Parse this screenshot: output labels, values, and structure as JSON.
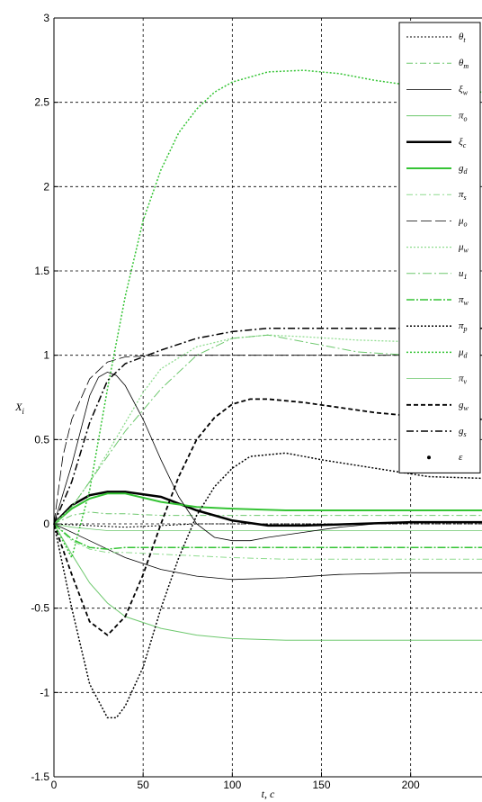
{
  "chart_data": {
    "type": "line",
    "title": "",
    "xlabel": "t, c",
    "ylabel": "X_i",
    "xlim": [
      0,
      240
    ],
    "ylim": [
      -1.5,
      3
    ],
    "xticks": [
      0,
      50,
      100,
      150,
      200
    ],
    "xtick_labels": [
      "0",
      "50",
      "100",
      "150",
      "200"
    ],
    "yticks": [
      -1.5,
      -1,
      -0.5,
      0,
      0.5,
      1,
      1.5,
      2,
      2.5,
      3
    ],
    "ytick_labels": [
      "-1.5",
      "-1",
      "-0.5",
      "0",
      "0.5",
      "1",
      "1.5",
      "2",
      "2.5",
      "3"
    ],
    "grid": true,
    "legend_position": "top-right",
    "series": [
      {
        "name": "θt",
        "label_main": "θ",
        "label_sub": "t",
        "color": "#000000",
        "dash": "2,2",
        "width": 1,
        "x": [
          0,
          20,
          40,
          60,
          80,
          100,
          120,
          140,
          160,
          180,
          200,
          220,
          240
        ],
        "y": [
          0,
          -0.01,
          -0.02,
          -0.01,
          0,
          0,
          0,
          0,
          0,
          0,
          0,
          0,
          0
        ]
      },
      {
        "name": "θm",
        "label_main": "θ",
        "label_sub": "m",
        "color": "#6ec86e",
        "dash": "7,3,2,3",
        "width": 1,
        "x": [
          0,
          10,
          20,
          30,
          40,
          60,
          80,
          100,
          120,
          150,
          180,
          210,
          240
        ],
        "y": [
          0,
          0.05,
          0.07,
          0.06,
          0.06,
          0.05,
          0.05,
          0.05,
          0.05,
          0.05,
          0.05,
          0.05,
          0.05
        ]
      },
      {
        "name": "ξw",
        "label_main": "ξ",
        "label_sub": "w",
        "color": "#000000",
        "dash": "",
        "width": 0.8,
        "x": [
          0,
          20,
          40,
          60,
          80,
          100,
          130,
          160,
          200,
          240
        ],
        "y": [
          0,
          -0.1,
          -0.2,
          -0.27,
          -0.31,
          -0.33,
          -0.32,
          -0.3,
          -0.29,
          -0.29
        ]
      },
      {
        "name": "πo",
        "label_main": "π",
        "label_sub": "o",
        "color": "#6ec86e",
        "dash": "",
        "width": 1,
        "x": [
          0,
          10,
          20,
          30,
          40,
          60,
          80,
          100,
          130,
          160,
          200,
          240
        ],
        "y": [
          0,
          -0.18,
          -0.35,
          -0.47,
          -0.55,
          -0.62,
          -0.66,
          -0.68,
          -0.69,
          -0.69,
          -0.69,
          -0.69
        ]
      },
      {
        "name": "ξc",
        "label_main": "ξ",
        "label_sub": "c",
        "color": "#000000",
        "dash": "",
        "width": 2.5,
        "x": [
          0,
          10,
          20,
          30,
          40,
          60,
          80,
          100,
          120,
          140,
          170,
          200,
          240
        ],
        "y": [
          0,
          0.11,
          0.17,
          0.19,
          0.19,
          0.16,
          0.08,
          0.02,
          -0.01,
          -0.01,
          0,
          0.01,
          0.01
        ]
      },
      {
        "name": "gd",
        "label_main": "g",
        "label_sub": "d",
        "color": "#35c435",
        "dash": "",
        "width": 2,
        "x": [
          0,
          10,
          20,
          30,
          40,
          60,
          80,
          100,
          130,
          160,
          200,
          240
        ],
        "y": [
          0,
          0.09,
          0.15,
          0.18,
          0.18,
          0.13,
          0.1,
          0.09,
          0.08,
          0.08,
          0.08,
          0.08
        ]
      },
      {
        "name": "πs",
        "label_main": "π",
        "label_sub": "s",
        "color": "#8fdc8f",
        "dash": "7,3,2,3",
        "width": 1,
        "x": [
          0,
          10,
          20,
          30,
          40,
          60,
          80,
          100,
          130,
          160,
          200,
          240
        ],
        "y": [
          0,
          -0.1,
          -0.15,
          -0.17,
          -0.17,
          -0.18,
          -0.19,
          -0.2,
          -0.21,
          -0.21,
          -0.21,
          -0.21
        ]
      },
      {
        "name": "μo",
        "label_main": "μ",
        "label_sub": "o",
        "color": "#000000",
        "dash": "12,4",
        "width": 0.8,
        "x": [
          0,
          5,
          10,
          20,
          30,
          40,
          60,
          80,
          100,
          130,
          160,
          200,
          240
        ],
        "y": [
          0,
          0.4,
          0.62,
          0.86,
          0.96,
          0.99,
          1.0,
          1.0,
          1.0,
          1.0,
          1.0,
          1.0,
          1.0
        ]
      },
      {
        "name": "μw",
        "label_main": "μ",
        "label_sub": "w",
        "color": "#8fdc8f",
        "dash": "2,2",
        "width": 1.3,
        "x": [
          0,
          10,
          20,
          30,
          40,
          50,
          60,
          80,
          100,
          120,
          140,
          170,
          200,
          240
        ],
        "y": [
          0,
          0.1,
          0.25,
          0.42,
          0.6,
          0.78,
          0.92,
          1.05,
          1.1,
          1.12,
          1.11,
          1.09,
          1.08,
          1.08
        ]
      },
      {
        "name": "u1",
        "label_main": "u",
        "label_sub": "1",
        "color": "#6ec86e",
        "dash": "10,3,2,3",
        "width": 1,
        "x": [
          0,
          10,
          20,
          30,
          40,
          60,
          80,
          100,
          120,
          140,
          170,
          200,
          240
        ],
        "y": [
          0,
          0.1,
          0.25,
          0.4,
          0.55,
          0.8,
          1.0,
          1.1,
          1.12,
          1.08,
          1.02,
          1.0,
          0.99
        ]
      },
      {
        "name": "πw",
        "label_main": "π",
        "label_sub": "w",
        "color": "#35c435",
        "dash": "9,2,2,2",
        "width": 1.5,
        "x": [
          0,
          10,
          20,
          30,
          40,
          60,
          80,
          100,
          130,
          160,
          200,
          240
        ],
        "y": [
          0,
          -0.09,
          -0.14,
          -0.15,
          -0.14,
          -0.14,
          -0.14,
          -0.14,
          -0.14,
          -0.14,
          -0.14,
          -0.14
        ]
      },
      {
        "name": "πp",
        "label_main": "π",
        "label_sub": "p",
        "color": "#000000",
        "dash": "2,2",
        "width": 1.5,
        "x": [
          0,
          10,
          20,
          30,
          35,
          40,
          50,
          60,
          70,
          80,
          90,
          100,
          110,
          130,
          150,
          180,
          210,
          240
        ],
        "y": [
          0,
          -0.5,
          -0.95,
          -1.15,
          -1.15,
          -1.08,
          -0.85,
          -0.5,
          -0.2,
          0.05,
          0.22,
          0.33,
          0.4,
          0.42,
          0.38,
          0.33,
          0.28,
          0.27
        ]
      },
      {
        "name": "μd",
        "label_main": "μ",
        "label_sub": "d",
        "color": "#35c435",
        "dash": "2,2",
        "width": 1.5,
        "x": [
          0,
          10,
          20,
          30,
          40,
          50,
          60,
          70,
          80,
          90,
          100,
          120,
          140,
          160,
          180,
          200,
          220,
          240
        ],
        "y": [
          0,
          -0.2,
          0.2,
          0.8,
          1.35,
          1.8,
          2.1,
          2.32,
          2.46,
          2.56,
          2.62,
          2.68,
          2.69,
          2.67,
          2.63,
          2.6,
          2.58,
          2.56
        ]
      },
      {
        "name": "πv",
        "label_main": "π",
        "label_sub": "v",
        "color": "#6ec86e",
        "dash": "",
        "width": 0.8,
        "x": [
          0,
          10,
          20,
          30,
          40,
          60,
          80,
          100,
          130,
          160,
          200,
          240
        ],
        "y": [
          0,
          -0.02,
          -0.03,
          -0.04,
          -0.04,
          -0.04,
          -0.04,
          -0.04,
          -0.04,
          -0.04,
          -0.04,
          -0.04
        ]
      },
      {
        "name": "gw",
        "label_main": "g",
        "label_sub": "w",
        "color": "#000000",
        "dash": "5,3",
        "width": 1.8,
        "x": [
          0,
          10,
          20,
          30,
          40,
          50,
          60,
          70,
          80,
          90,
          100,
          110,
          120,
          140,
          160,
          180,
          200,
          220,
          240
        ],
        "y": [
          0,
          -0.3,
          -0.58,
          -0.66,
          -0.55,
          -0.3,
          0,
          0.28,
          0.5,
          0.63,
          0.71,
          0.74,
          0.74,
          0.72,
          0.69,
          0.66,
          0.64,
          0.63,
          0.62
        ]
      },
      {
        "name": "gs",
        "label_main": "g",
        "label_sub": "s",
        "color": "#000000",
        "dash": "8,3,2,3",
        "width": 1.5,
        "x": [
          0,
          10,
          20,
          30,
          40,
          60,
          80,
          100,
          120,
          140,
          160,
          180,
          200,
          240
        ],
        "y": [
          0,
          0.25,
          0.6,
          0.85,
          0.95,
          1.03,
          1.1,
          1.14,
          1.16,
          1.16,
          1.16,
          1.16,
          1.16,
          1.16
        ]
      },
      {
        "name": "ε",
        "label_main": "ε",
        "label_sub": "",
        "color": "#000000",
        "dash": "",
        "width": 0.8,
        "x": [
          0,
          10,
          20,
          25,
          30,
          35,
          40,
          50,
          60,
          70,
          80,
          90,
          100,
          110,
          120,
          140,
          160,
          180,
          200,
          240
        ],
        "y": [
          0,
          0.35,
          0.76,
          0.87,
          0.9,
          0.88,
          0.82,
          0.62,
          0.38,
          0.16,
          0.0,
          -0.08,
          -0.1,
          -0.1,
          -0.08,
          -0.05,
          -0.02,
          0,
          0.01,
          0.01
        ]
      }
    ]
  }
}
